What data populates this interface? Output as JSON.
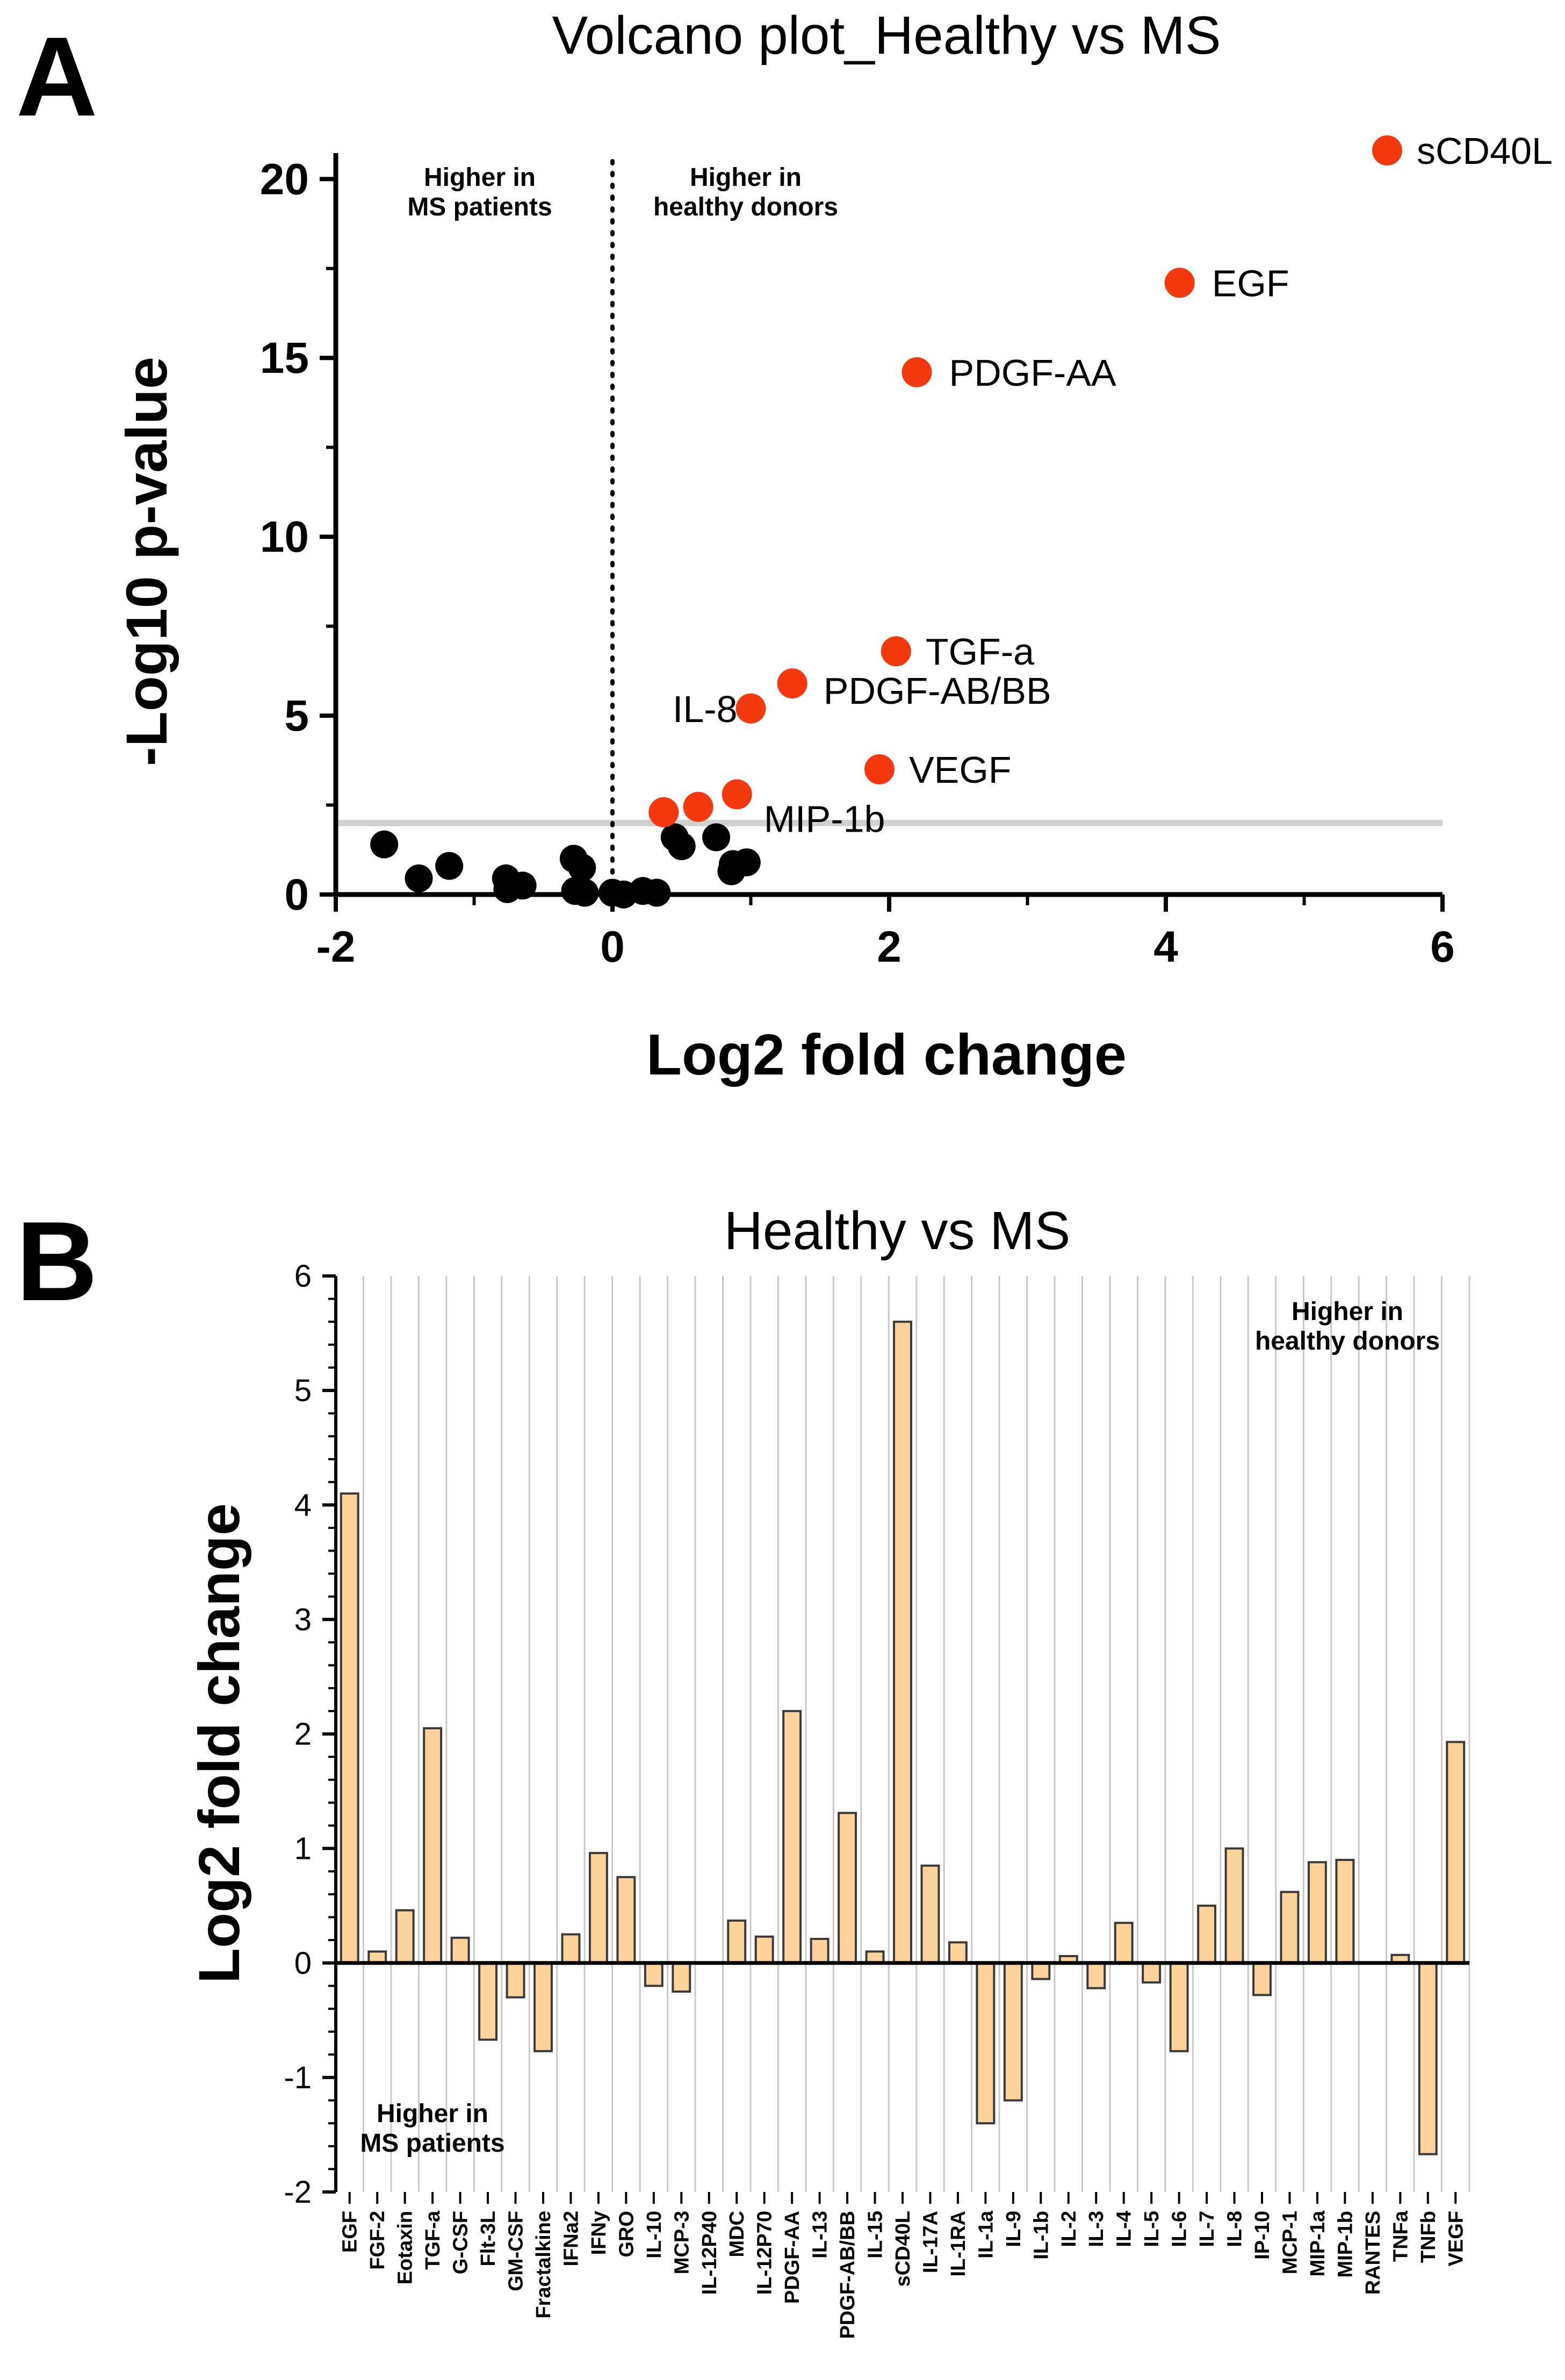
{
  "panel_a": {
    "letter": "A",
    "annotation_left": [
      "Higher in",
      "MS patients"
    ],
    "annotation_right": [
      "Higher in",
      "healthy donors"
    ]
  },
  "panel_b": {
    "letter": "B",
    "annotation_left": [
      "Higher in",
      "MS patients"
    ],
    "annotation_right": [
      "Higher in",
      "healthy donors"
    ]
  },
  "colors": {
    "significant": "#f4390f",
    "nonsignificant": "#000000",
    "bar_fill": "#fcd39b",
    "bar_stroke": "#3a3a3a",
    "gridline": "#c8c8c8",
    "threshold": "#d0d0d0"
  },
  "chart_data": [
    {
      "type": "scatter",
      "title": "Volcano plot_Healthy vs MS",
      "xlabel": "Log2 fold change",
      "ylabel": "-Log10 p-value",
      "xlim": [
        -2,
        6
      ],
      "ylim": [
        0,
        20.5
      ],
      "xticks": [
        -2,
        0,
        2,
        4,
        6
      ],
      "yticks": [
        0,
        5,
        10,
        15,
        20
      ],
      "significance_threshold": 2,
      "fold_change_reference": 0,
      "significant_points": [
        {
          "x": 5.6,
          "y": 20.8,
          "label": "sCD40L"
        },
        {
          "x": 4.1,
          "y": 17.1,
          "label": "EGF"
        },
        {
          "x": 2.2,
          "y": 14.6,
          "label": "PDGF-AA"
        },
        {
          "x": 2.05,
          "y": 6.8,
          "label": "TGF-a"
        },
        {
          "x": 1.3,
          "y": 5.9,
          "label": "PDGF-AB/BB"
        },
        {
          "x": 1.0,
          "y": 5.2,
          "label": "IL-8"
        },
        {
          "x": 1.93,
          "y": 3.5,
          "label": "VEGF"
        },
        {
          "x": 0.9,
          "y": 2.8,
          "label": "MIP-1b"
        },
        {
          "x": 0.62,
          "y": 2.45,
          "label": ""
        },
        {
          "x": 0.37,
          "y": 2.3,
          "label": ""
        }
      ],
      "nonsignificant_points": [
        {
          "x": -1.65,
          "y": 1.4
        },
        {
          "x": -1.4,
          "y": 0.45
        },
        {
          "x": -1.18,
          "y": 0.8
        },
        {
          "x": -0.77,
          "y": 0.45
        },
        {
          "x": -0.76,
          "y": 0.15
        },
        {
          "x": -0.65,
          "y": 0.25
        },
        {
          "x": -0.28,
          "y": 1.0
        },
        {
          "x": -0.22,
          "y": 0.75
        },
        {
          "x": -0.27,
          "y": 0.1
        },
        {
          "x": -0.2,
          "y": 0.05
        },
        {
          "x": 0.0,
          "y": 0.05
        },
        {
          "x": 0.08,
          "y": 0.0
        },
        {
          "x": 0.22,
          "y": 0.1
        },
        {
          "x": 0.32,
          "y": 0.05
        },
        {
          "x": 0.45,
          "y": 1.6
        },
        {
          "x": 0.5,
          "y": 1.35
        },
        {
          "x": 0.75,
          "y": 1.6
        },
        {
          "x": 0.86,
          "y": 0.65
        },
        {
          "x": 0.97,
          "y": 0.9
        },
        {
          "x": 0.87,
          "y": 0.85
        }
      ]
    },
    {
      "type": "bar",
      "title": "Healthy vs MS",
      "xlabel": "",
      "ylabel": "Log2 fold change",
      "ylim": [
        -2,
        6
      ],
      "yticks": [
        -2,
        -1,
        0,
        1,
        2,
        3,
        4,
        5,
        6
      ],
      "categories": [
        "EGF",
        "FGF-2",
        "Eotaxin",
        "TGF-a",
        "G-CSF",
        "Flt-3L",
        "GM-CSF",
        "Fractalkine",
        "IFNa2",
        "IFNy",
        "GRO",
        "IL-10",
        "MCP-3",
        "IL-12P40",
        "MDC",
        "IL-12P70",
        "PDGF-AA",
        "IL-13",
        "PDGF-AB/BB",
        "IL-15",
        "sCD40L",
        "IL-17A",
        "IL-1RA",
        "IL-1a",
        "IL-9",
        "IL-1b",
        "IL-2",
        "IL-3",
        "IL-4",
        "IL-5",
        "IL-6",
        "IL-7",
        "IL-8",
        "IP-10",
        "MCP-1",
        "MIP-1a",
        "MIP-1b",
        "RANTES",
        "TNFa",
        "TNFb",
        "VEGF"
      ],
      "values": [
        4.1,
        0.1,
        0.46,
        2.05,
        0.22,
        -0.67,
        -0.3,
        -0.77,
        0.25,
        0.96,
        0.75,
        -0.2,
        -0.25,
        0.0,
        0.37,
        0.23,
        2.2,
        0.21,
        1.31,
        0.1,
        5.6,
        0.85,
        0.18,
        -1.4,
        -1.2,
        -0.14,
        0.06,
        -0.22,
        0.35,
        -0.17,
        -0.77,
        0.5,
        1.0,
        -0.28,
        0.62,
        0.88,
        0.9,
        0.0,
        0.07,
        -1.67,
        1.93
      ]
    }
  ]
}
